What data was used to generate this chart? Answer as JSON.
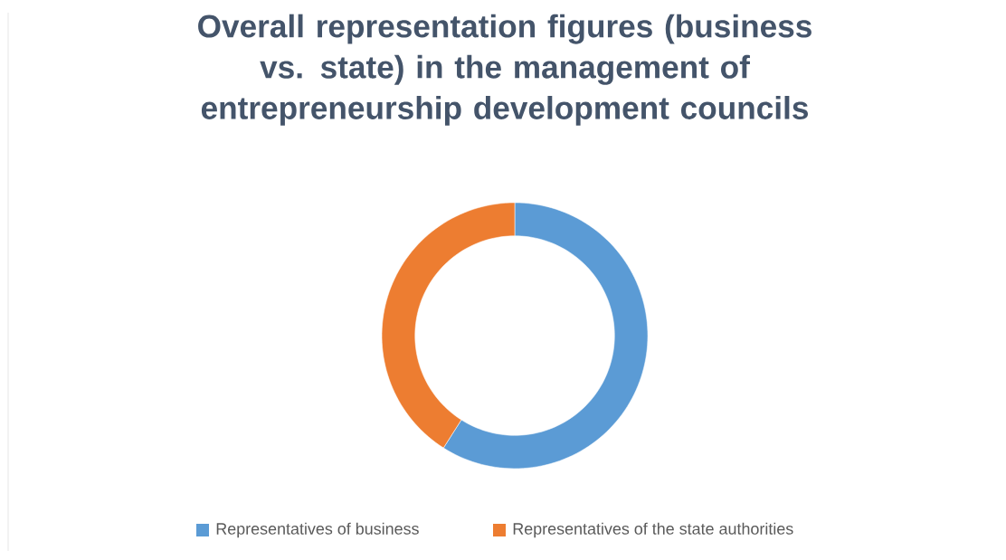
{
  "chart_data": {
    "type": "donut",
    "title": "Overall representation figures (business vs. state) in the management of entrepreneurship development councils",
    "categories": [
      "Representatives of business",
      "Representatives of the state authorities"
    ],
    "values": [
      59,
      41
    ],
    "colors": [
      "#5b9bd5",
      "#ed7d31"
    ],
    "legend": "bottom"
  }
}
